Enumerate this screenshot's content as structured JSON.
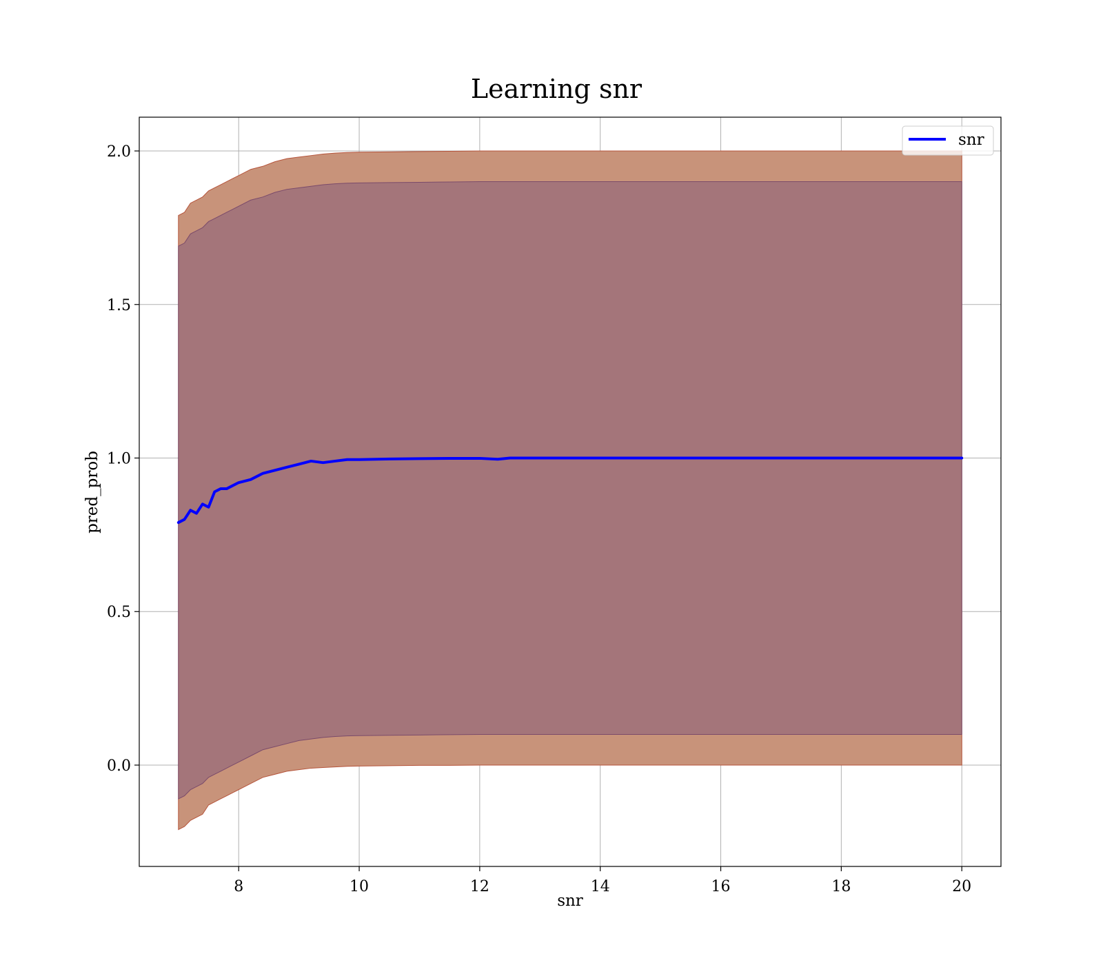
{
  "chart_data": {
    "type": "line",
    "title": "Learning snr",
    "xlabel": "snr",
    "ylabel": "pred_prob",
    "xlim": [
      6.35,
      20.65
    ],
    "ylim": [
      -0.33,
      2.11
    ],
    "xticks": [
      8,
      10,
      12,
      14,
      16,
      18,
      20
    ],
    "xtick_labels": [
      "8",
      "10",
      "12",
      "14",
      "16",
      "18",
      "20"
    ],
    "yticks": [
      0.0,
      0.5,
      1.0,
      1.5,
      2.0
    ],
    "ytick_labels": [
      "0.0",
      "0.5",
      "1.0",
      "1.5",
      "2.0"
    ],
    "grid": true,
    "legend": {
      "position": "top-right",
      "entries": [
        "snr"
      ]
    },
    "colors": {
      "line": "#0000ff",
      "outer_band": "#c8937a",
      "inner_band": "#a0727a",
      "outer_band_edge": "#b5533a",
      "inner_band_edge": "#7a4a6a",
      "grid": "#b0b0b0"
    },
    "series": [
      {
        "name": "snr",
        "x": [
          7.0,
          7.1,
          7.2,
          7.3,
          7.4,
          7.5,
          7.6,
          7.7,
          7.8,
          7.9,
          8.0,
          8.2,
          8.4,
          8.6,
          8.8,
          9.0,
          9.2,
          9.4,
          9.6,
          9.8,
          10.0,
          10.5,
          11.0,
          11.5,
          12.0,
          12.3,
          12.5,
          13.0,
          14.0,
          15.0,
          16.0,
          17.0,
          18.0,
          19.0,
          20.0
        ],
        "y": [
          0.79,
          0.8,
          0.83,
          0.82,
          0.85,
          0.84,
          0.89,
          0.9,
          0.9,
          0.91,
          0.92,
          0.93,
          0.95,
          0.96,
          0.97,
          0.98,
          0.99,
          0.985,
          0.99,
          0.995,
          0.995,
          0.997,
          0.998,
          0.999,
          0.999,
          0.996,
          1.0,
          1.0,
          1.0,
          1.0,
          1.0,
          1.0,
          1.0,
          1.0,
          1.0
        ]
      }
    ],
    "bands": [
      {
        "role": "outer",
        "x": [
          7.0,
          7.1,
          7.2,
          7.3,
          7.4,
          7.5,
          7.6,
          7.7,
          7.8,
          7.9,
          8.0,
          8.2,
          8.4,
          8.6,
          8.8,
          9.0,
          9.2,
          9.4,
          9.6,
          9.8,
          10.0,
          10.5,
          11.0,
          11.5,
          12.0,
          13.0,
          14.0,
          16.0,
          18.0,
          20.0
        ],
        "lower": [
          -0.21,
          -0.2,
          -0.18,
          -0.17,
          -0.16,
          -0.13,
          -0.12,
          -0.11,
          -0.1,
          -0.09,
          -0.08,
          -0.06,
          -0.04,
          -0.03,
          -0.02,
          -0.015,
          -0.01,
          -0.008,
          -0.006,
          -0.004,
          -0.003,
          -0.002,
          -0.001,
          -0.001,
          0.0,
          0.0,
          0.0,
          0.0,
          0.0,
          0.0
        ],
        "upper": [
          1.79,
          1.8,
          1.83,
          1.84,
          1.85,
          1.87,
          1.88,
          1.89,
          1.9,
          1.91,
          1.92,
          1.94,
          1.95,
          1.965,
          1.975,
          1.98,
          1.985,
          1.99,
          1.993,
          1.995,
          1.996,
          1.997,
          1.998,
          1.999,
          2.0,
          2.0,
          2.0,
          2.0,
          2.0,
          2.0
        ]
      },
      {
        "role": "inner",
        "x": [
          7.0,
          7.1,
          7.2,
          7.3,
          7.4,
          7.5,
          7.6,
          7.7,
          7.8,
          7.9,
          8.0,
          8.2,
          8.4,
          8.6,
          8.8,
          9.0,
          9.2,
          9.4,
          9.6,
          9.8,
          10.0,
          10.5,
          11.0,
          11.5,
          12.0,
          13.0,
          14.0,
          16.0,
          18.0,
          20.0
        ],
        "lower": [
          -0.11,
          -0.1,
          -0.08,
          -0.07,
          -0.06,
          -0.04,
          -0.03,
          -0.02,
          -0.01,
          0.0,
          0.01,
          0.03,
          0.05,
          0.06,
          0.07,
          0.08,
          0.085,
          0.09,
          0.093,
          0.095,
          0.096,
          0.097,
          0.098,
          0.099,
          0.1,
          0.1,
          0.1,
          0.1,
          0.1,
          0.1
        ],
        "upper": [
          1.69,
          1.7,
          1.73,
          1.74,
          1.75,
          1.77,
          1.78,
          1.79,
          1.8,
          1.81,
          1.82,
          1.84,
          1.85,
          1.865,
          1.875,
          1.88,
          1.885,
          1.89,
          1.893,
          1.895,
          1.896,
          1.897,
          1.898,
          1.899,
          1.9,
          1.9,
          1.9,
          1.9,
          1.9,
          1.9
        ]
      }
    ]
  }
}
